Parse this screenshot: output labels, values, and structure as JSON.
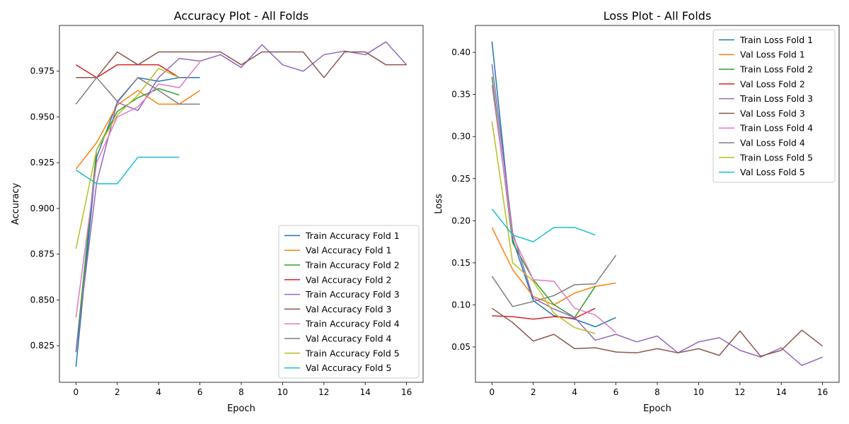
{
  "chart_data": [
    {
      "type": "line",
      "title": "Accuracy Plot - All Folds",
      "xlabel": "Epoch",
      "ylabel": "Accuracy",
      "xlim": [
        -0.8,
        16.8
      ],
      "ylim": [
        0.805,
        1.0
      ],
      "xticks": [
        0,
        2,
        4,
        6,
        8,
        10,
        12,
        14,
        16
      ],
      "yticks": [
        0.825,
        0.85,
        0.875,
        0.9,
        0.925,
        0.95,
        0.975
      ],
      "ytick_labels": [
        "0.825",
        "0.850",
        "0.875",
        "0.900",
        "0.925",
        "0.950",
        "0.975"
      ],
      "legend_position": "bottom-right",
      "grid": false,
      "series": [
        {
          "name": "Train Accuracy Fold 1",
          "color": "#1f77b4",
          "values": [
            0.8135,
            0.928,
            0.958,
            0.9715,
            0.9695,
            0.9715,
            0.9715
          ]
        },
        {
          "name": "Val Accuracy Fold 1",
          "color": "#ff7f0e",
          "values": [
            0.9215,
            0.936,
            0.9565,
            0.9645,
            0.957,
            0.957,
            0.9645
          ]
        },
        {
          "name": "Train Accuracy Fold 2",
          "color": "#2ca02c",
          "values": [
            0.8215,
            0.932,
            0.953,
            0.9605,
            0.9655,
            0.962
          ]
        },
        {
          "name": "Val Accuracy Fold 2",
          "color": "#d62728",
          "values": [
            0.9785,
            0.9715,
            0.9785,
            0.9785,
            0.9785,
            0.9715
          ]
        },
        {
          "name": "Train Accuracy Fold 3",
          "color": "#9467bd",
          "values": [
            0.8215,
            0.914,
            0.958,
            0.9535,
            0.9715,
            0.982,
            0.9805,
            0.984,
            0.977,
            0.9895,
            0.9785,
            0.975,
            0.984,
            0.986,
            0.984,
            0.991,
            0.9785
          ]
        },
        {
          "name": "Val Accuracy Fold 3",
          "color": "#8c564b",
          "values": [
            0.9715,
            0.9715,
            0.9855,
            0.9785,
            0.9855,
            0.9855,
            0.9855,
            0.9855,
            0.9785,
            0.9855,
            0.9855,
            0.9855,
            0.9715,
            0.9855,
            0.9855,
            0.9785,
            0.9785
          ]
        },
        {
          "name": "Train Accuracy Fold 4",
          "color": "#e377c2",
          "values": [
            0.8405,
            0.925,
            0.95,
            0.9555,
            0.968,
            0.966,
            0.98
          ]
        },
        {
          "name": "Val Accuracy Fold 4",
          "color": "#7f7f7f",
          "values": [
            0.957,
            0.9715,
            0.9585,
            0.9715,
            0.9645,
            0.957,
            0.957
          ]
        },
        {
          "name": "Train Accuracy Fold 5",
          "color": "#bcbd22",
          "values": [
            0.878,
            0.932,
            0.951,
            0.962,
            0.9765,
            0.9715
          ]
        },
        {
          "name": "Val Accuracy Fold 5",
          "color": "#17becf",
          "values": [
            0.921,
            0.9135,
            0.9135,
            0.928,
            0.928,
            0.928
          ]
        }
      ]
    },
    {
      "type": "line",
      "title": "Loss Plot - All Folds",
      "xlabel": "Epoch",
      "ylabel": "Loss",
      "xlim": [
        -0.8,
        16.8
      ],
      "ylim": [
        0.008,
        0.432
      ],
      "xticks": [
        0,
        2,
        4,
        6,
        8,
        10,
        12,
        14,
        16
      ],
      "yticks": [
        0.05,
        0.1,
        0.15,
        0.2,
        0.25,
        0.3,
        0.35,
        0.4
      ],
      "ytick_labels": [
        "0.05",
        "0.10",
        "0.15",
        "0.20",
        "0.25",
        "0.30",
        "0.35",
        "0.40"
      ],
      "legend_position": "top-right",
      "grid": false,
      "series": [
        {
          "name": "Train Loss Fold 1",
          "color": "#1f77b4",
          "values": [
            0.413,
            0.178,
            0.105,
            0.087,
            0.083,
            0.074,
            0.085
          ]
        },
        {
          "name": "Val Loss Fold 1",
          "color": "#ff7f0e",
          "values": [
            0.192,
            0.142,
            0.11,
            0.1,
            0.114,
            0.122,
            0.126
          ]
        },
        {
          "name": "Train Loss Fold 2",
          "color": "#2ca02c",
          "values": [
            0.371,
            0.174,
            0.13,
            0.1,
            0.085,
            0.122
          ]
        },
        {
          "name": "Val Loss Fold 2",
          "color": "#d62728",
          "values": [
            0.087,
            0.086,
            0.083,
            0.086,
            0.084,
            0.096
          ]
        },
        {
          "name": "Train Loss Fold 3",
          "color": "#9467bd",
          "values": [
            0.386,
            0.186,
            0.108,
            0.095,
            0.085,
            0.058,
            0.065,
            0.056,
            0.063,
            0.043,
            0.056,
            0.061,
            0.046,
            0.038,
            0.049,
            0.028,
            0.038
          ]
        },
        {
          "name": "Val Loss Fold 3",
          "color": "#8c564b",
          "values": [
            0.096,
            0.079,
            0.057,
            0.065,
            0.048,
            0.049,
            0.044,
            0.043,
            0.048,
            0.043,
            0.048,
            0.04,
            0.069,
            0.039,
            0.046,
            0.07,
            0.051
          ]
        },
        {
          "name": "Train Loss Fold 4",
          "color": "#e377c2",
          "values": [
            0.361,
            0.182,
            0.13,
            0.128,
            0.096,
            0.088,
            0.067
          ]
        },
        {
          "name": "Val Loss Fold 4",
          "color": "#7f7f7f",
          "values": [
            0.134,
            0.098,
            0.104,
            0.111,
            0.124,
            0.125,
            0.159
          ]
        },
        {
          "name": "Train Loss Fold 5",
          "color": "#bcbd22",
          "values": [
            0.318,
            0.15,
            0.128,
            0.09,
            0.073,
            0.066
          ]
        },
        {
          "name": "Val Loss Fold 5",
          "color": "#17becf",
          "values": [
            0.214,
            0.183,
            0.175,
            0.192,
            0.192,
            0.183
          ]
        }
      ]
    }
  ]
}
